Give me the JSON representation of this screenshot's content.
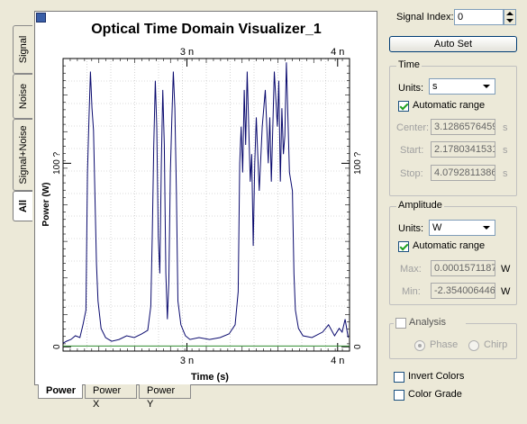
{
  "plot": {
    "title": "Optical Time Domain Visualizer_1",
    "xlabel": "Time (s)",
    "ylabel": "Power (W)"
  },
  "left_tabs": [
    "Signal",
    "Noise",
    "Signal+Noise",
    "All"
  ],
  "bottom_tabs": [
    "Power",
    "Power X",
    "Power Y"
  ],
  "panel": {
    "signal_index_label": "Signal Index:",
    "signal_index_value": "0",
    "auto_set_label": "Auto Set",
    "time": {
      "group_title": "Time",
      "units_label": "Units:",
      "units_value": "s",
      "auto_range_label": "Automatic range",
      "center_label": "Center:",
      "center_value": "3.1286576459",
      "center_unit": "s",
      "start_label": "Start:",
      "start_value": "2.1780341531",
      "start_unit": "s",
      "stop_label": "Stop:",
      "stop_value": "4.0792811386",
      "stop_unit": "s"
    },
    "amplitude": {
      "group_title": "Amplitude",
      "units_label": "Units:",
      "units_value": "W",
      "auto_range_label": "Automatic range",
      "max_label": "Max:",
      "max_value": "0.0001571187",
      "max_unit": "W",
      "min_label": "Min:",
      "min_value": "-2.354006446",
      "min_unit": "W"
    },
    "analysis_label": "Analysis",
    "phase_label": "Phase",
    "chirp_label": "Chirp",
    "invert_colors_label": "Invert Colors",
    "color_grade_label": "Color Grade"
  },
  "chart_data": {
    "type": "line",
    "title": "Optical Time Domain Visualizer_1",
    "xlabel": "Time (s)",
    "ylabel": "Power (W)",
    "x_ticks": [
      {
        "value": 3.0,
        "label": "3 n"
      },
      {
        "value": 4.0,
        "label": "4 n"
      }
    ],
    "y_ticks": [
      {
        "value": 0,
        "label": "0"
      },
      {
        "value": 100,
        "label": "100 ?"
      }
    ],
    "xlim": [
      2.178,
      4.079
    ],
    "ylim": [
      -2.35,
      157.1
    ],
    "grid": true,
    "series": [
      {
        "color": "#0a0a6e",
        "points": [
          [
            2.18,
            2
          ],
          [
            2.2,
            3
          ],
          [
            2.23,
            4
          ],
          [
            2.26,
            6
          ],
          [
            2.29,
            5
          ],
          [
            2.31,
            12
          ],
          [
            2.33,
            20
          ],
          [
            2.34,
            95
          ],
          [
            2.35,
            125
          ],
          [
            2.36,
            150
          ],
          [
            2.37,
            130
          ],
          [
            2.38,
            118
          ],
          [
            2.39,
            80
          ],
          [
            2.4,
            45
          ],
          [
            2.41,
            25
          ],
          [
            2.43,
            10
          ],
          [
            2.46,
            5
          ],
          [
            2.5,
            3
          ],
          [
            2.55,
            4
          ],
          [
            2.6,
            6
          ],
          [
            2.65,
            5
          ],
          [
            2.7,
            7
          ],
          [
            2.74,
            9
          ],
          [
            2.76,
            22
          ],
          [
            2.77,
            60
          ],
          [
            2.78,
            110
          ],
          [
            2.79,
            145
          ],
          [
            2.8,
            120
          ],
          [
            2.81,
            60
          ],
          [
            2.82,
            40
          ],
          [
            2.83,
            100
          ],
          [
            2.84,
            140
          ],
          [
            2.85,
            110
          ],
          [
            2.86,
            40
          ],
          [
            2.87,
            15
          ],
          [
            2.88,
            35
          ],
          [
            2.89,
            95
          ],
          [
            2.9,
            125
          ],
          [
            2.91,
            150
          ],
          [
            2.92,
            130
          ],
          [
            2.93,
            85
          ],
          [
            2.94,
            25
          ],
          [
            2.96,
            12
          ],
          [
            2.99,
            6
          ],
          [
            3.02,
            4
          ],
          [
            3.08,
            5
          ],
          [
            3.15,
            4
          ],
          [
            3.22,
            5
          ],
          [
            3.28,
            7
          ],
          [
            3.32,
            12
          ],
          [
            3.34,
            30
          ],
          [
            3.35,
            100
          ],
          [
            3.36,
            120
          ],
          [
            3.37,
            95
          ],
          [
            3.38,
            140
          ],
          [
            3.39,
            110
          ],
          [
            3.4,
            150
          ],
          [
            3.41,
            120
          ],
          [
            3.42,
            90
          ],
          [
            3.43,
            105
          ],
          [
            3.44,
            55
          ],
          [
            3.45,
            100
          ],
          [
            3.46,
            125
          ],
          [
            3.47,
            105
          ],
          [
            3.48,
            85
          ],
          [
            3.5,
            120
          ],
          [
            3.52,
            140
          ],
          [
            3.54,
            100
          ],
          [
            3.55,
            125
          ],
          [
            3.56,
            90
          ],
          [
            3.58,
            150
          ],
          [
            3.6,
            120
          ],
          [
            3.61,
            145
          ],
          [
            3.62,
            90
          ],
          [
            3.63,
            130
          ],
          [
            3.64,
            105
          ],
          [
            3.65,
            115
          ],
          [
            3.66,
            155
          ],
          [
            3.67,
            125
          ],
          [
            3.68,
            95
          ],
          [
            3.7,
            85
          ],
          [
            3.71,
            40
          ],
          [
            3.72,
            20
          ],
          [
            3.74,
            10
          ],
          [
            3.77,
            6
          ],
          [
            3.83,
            5
          ],
          [
            3.9,
            8
          ],
          [
            3.94,
            12
          ],
          [
            3.98,
            6
          ],
          [
            4.01,
            10
          ],
          [
            4.03,
            8
          ],
          [
            4.05,
            15
          ],
          [
            4.07,
            5
          ]
        ]
      },
      {
        "color": "#2e8b2e",
        "points": [
          [
            2.178,
            0.4
          ],
          [
            4.079,
            0.4
          ]
        ]
      }
    ]
  }
}
